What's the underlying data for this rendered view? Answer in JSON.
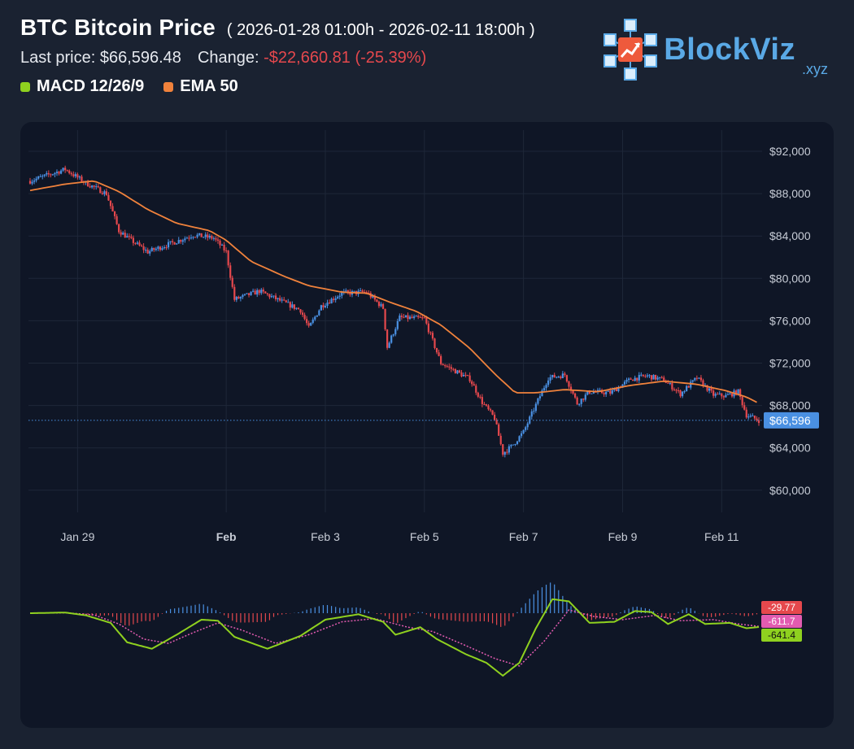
{
  "header": {
    "title": "BTC Bitcoin Price",
    "range": "( 2026-01-28 01:00h - 2026-02-11 18:00h )",
    "last_price_label": "Last price:",
    "last_price": "$66,596.48",
    "change_label": "Change:",
    "change_value": "-$22,660.81 (-25.39%)",
    "legend": [
      {
        "label": "MACD 12/26/9",
        "color": "#8fd11f"
      },
      {
        "label": "EMA 50",
        "color": "#f0823c"
      }
    ]
  },
  "brand": {
    "name": "BlockViz",
    "tld": ".xyz",
    "icon": "blockchain-cube-icon"
  },
  "colors": {
    "up": "#4a90e2",
    "down": "#e5484d",
    "ema": "#f0823c",
    "macd": "#8fd11f",
    "signal": "#e25bb0",
    "last_price_tag": "#4a90e2"
  },
  "chart_data": [
    {
      "type": "candlestick",
      "title": "BTC Bitcoin Price",
      "x_ticks": [
        "Jan 29",
        "Feb",
        "Feb 3",
        "Feb 5",
        "Feb 7",
        "Feb 9",
        "Feb 11"
      ],
      "x_tick_dates": [
        "2026-01-29",
        "2026-02-01",
        "2026-02-03",
        "2026-02-05",
        "2026-02-07",
        "2026-02-09",
        "2026-02-11"
      ],
      "y_ticks": [
        "$92,000",
        "$88,000",
        "$84,000",
        "$80,000",
        "$76,000",
        "$72,000",
        "$68,000",
        "$64,000",
        "$60,000"
      ],
      "ylim": [
        57000,
        94000
      ],
      "last_price": 66596,
      "last_price_label": "$66,596",
      "price_path": [
        [
          "2026-01-28 01:00",
          89200
        ],
        [
          "2026-01-28 18:00",
          90300
        ],
        [
          "2026-01-29 04:00",
          89000
        ],
        [
          "2026-01-29 14:00",
          88000
        ],
        [
          "2026-01-29 20:00",
          84500
        ],
        [
          "2026-01-30 02:00",
          83600
        ],
        [
          "2026-01-30 10:00",
          82500
        ],
        [
          "2026-01-31 00:00",
          83500
        ],
        [
          "2026-01-31 08:00",
          84100
        ],
        [
          "2026-01-31 18:00",
          83800
        ],
        [
          "2026-02-01 00:00",
          82500
        ],
        [
          "2026-02-01 04:00",
          78000
        ],
        [
          "2026-02-01 16:00",
          78800
        ],
        [
          "2026-02-02 02:00",
          77900
        ],
        [
          "2026-02-02 12:00",
          77000
        ],
        [
          "2026-02-02 16:00",
          75300
        ],
        [
          "2026-02-02 22:00",
          77400
        ],
        [
          "2026-02-03 08:00",
          78600
        ],
        [
          "2026-02-03 20:00",
          78700
        ],
        [
          "2026-02-04 04:00",
          77200
        ],
        [
          "2026-02-04 06:00",
          73500
        ],
        [
          "2026-02-04 12:00",
          76300
        ],
        [
          "2026-02-05 00:00",
          76200
        ],
        [
          "2026-02-05 08:00",
          72000
        ],
        [
          "2026-02-05 22:00",
          70500
        ],
        [
          "2026-02-06 04:00",
          68300
        ],
        [
          "2026-02-06 10:00",
          66800
        ],
        [
          "2026-02-06 14:00",
          63500
        ],
        [
          "2026-02-06 18:00",
          64100
        ],
        [
          "2026-02-07 00:00",
          65500
        ],
        [
          "2026-02-07 08:00",
          68900
        ],
        [
          "2026-02-07 12:00",
          70600
        ],
        [
          "2026-02-07 20:00",
          70900
        ],
        [
          "2026-02-08 02:00",
          68200
        ],
        [
          "2026-02-08 08:00",
          69300
        ],
        [
          "2026-02-08 18:00",
          69200
        ],
        [
          "2026-02-09 04:00",
          70500
        ],
        [
          "2026-02-09 12:00",
          70800
        ],
        [
          "2026-02-09 20:00",
          70400
        ],
        [
          "2026-02-10 04:00",
          69100
        ],
        [
          "2026-02-10 12:00",
          70600
        ],
        [
          "2026-02-10 20:00",
          69000
        ],
        [
          "2026-02-11 02:00",
          68900
        ],
        [
          "2026-02-11 08:00",
          69300
        ],
        [
          "2026-02-11 12:00",
          67100
        ],
        [
          "2026-02-11 18:00",
          66596
        ]
      ],
      "ema50_path": [
        [
          "2026-01-28 01:00",
          88300
        ],
        [
          "2026-01-28 18:00",
          88900
        ],
        [
          "2026-01-29 08:00",
          89200
        ],
        [
          "2026-01-29 20:00",
          88200
        ],
        [
          "2026-01-30 10:00",
          86500
        ],
        [
          "2026-01-31 00:00",
          85200
        ],
        [
          "2026-01-31 16:00",
          84500
        ],
        [
          "2026-02-01 00:00",
          83600
        ],
        [
          "2026-02-01 12:00",
          81600
        ],
        [
          "2026-02-02 04:00",
          80200
        ],
        [
          "2026-02-02 16:00",
          79300
        ],
        [
          "2026-02-03 08:00",
          78700
        ],
        [
          "2026-02-03 20:00",
          78600
        ],
        [
          "2026-02-04 08:00",
          77700
        ],
        [
          "2026-02-04 20:00",
          76900
        ],
        [
          "2026-02-05 08:00",
          75600
        ],
        [
          "2026-02-05 22:00",
          73400
        ],
        [
          "2026-02-06 10:00",
          71000
        ],
        [
          "2026-02-06 20:00",
          69200
        ],
        [
          "2026-02-07 06:00",
          69200
        ],
        [
          "2026-02-07 20:00",
          69500
        ],
        [
          "2026-02-08 12:00",
          69300
        ],
        [
          "2026-02-09 04:00",
          69900
        ],
        [
          "2026-02-09 20:00",
          70300
        ],
        [
          "2026-02-10 12:00",
          70000
        ],
        [
          "2026-02-11 02:00",
          69400
        ],
        [
          "2026-02-11 12:00",
          68800
        ],
        [
          "2026-02-11 18:00",
          68200
        ]
      ]
    },
    {
      "type": "macd",
      "title": "MACD 12/26/9",
      "series": [
        {
          "name": "MACD",
          "color": "#8fd11f",
          "last": -641.4,
          "last_label": "-641.4"
        },
        {
          "name": "Signal",
          "color": "#e25bb0",
          "last": -611.7,
          "last_label": "-611.7"
        },
        {
          "name": "Histogram",
          "last": -29.77,
          "last_label": "-29.77"
        }
      ],
      "macd_path": [
        [
          "2026-01-28 01:00",
          0
        ],
        [
          "2026-01-28 18:00",
          30
        ],
        [
          "2026-01-29 04:00",
          -100
        ],
        [
          "2026-01-29 16:00",
          -450
        ],
        [
          "2026-01-30 00:00",
          -1350
        ],
        [
          "2026-01-30 12:00",
          -1650
        ],
        [
          "2026-01-31 00:00",
          -1000
        ],
        [
          "2026-01-31 12:00",
          -300
        ],
        [
          "2026-01-31 20:00",
          -350
        ],
        [
          "2026-02-01 04:00",
          -1100
        ],
        [
          "2026-02-01 20:00",
          -1650
        ],
        [
          "2026-02-02 12:00",
          -1050
        ],
        [
          "2026-02-03 00:00",
          -300
        ],
        [
          "2026-02-03 16:00",
          -50
        ],
        [
          "2026-02-04 04:00",
          -400
        ],
        [
          "2026-02-04 10:00",
          -1000
        ],
        [
          "2026-02-04 22:00",
          -650
        ],
        [
          "2026-02-05 06:00",
          -1200
        ],
        [
          "2026-02-05 20:00",
          -1900
        ],
        [
          "2026-02-06 06:00",
          -2300
        ],
        [
          "2026-02-06 14:00",
          -2900
        ],
        [
          "2026-02-06 22:00",
          -2300
        ],
        [
          "2026-02-07 06:00",
          -700
        ],
        [
          "2026-02-07 14:00",
          650
        ],
        [
          "2026-02-07 22:00",
          550
        ],
        [
          "2026-02-08 08:00",
          -450
        ],
        [
          "2026-02-08 20:00",
          -400
        ],
        [
          "2026-02-09 06:00",
          100
        ],
        [
          "2026-02-09 14:00",
          50
        ],
        [
          "2026-02-09 22:00",
          -500
        ],
        [
          "2026-02-10 08:00",
          -50
        ],
        [
          "2026-02-10 16:00",
          -500
        ],
        [
          "2026-02-11 04:00",
          -450
        ],
        [
          "2026-02-11 12:00",
          -700
        ],
        [
          "2026-02-11 18:00",
          -641.4
        ]
      ],
      "signal_path": [
        [
          "2026-01-28 01:00",
          0
        ],
        [
          "2026-01-28 18:00",
          20
        ],
        [
          "2026-01-29 08:00",
          -80
        ],
        [
          "2026-01-29 20:00",
          -500
        ],
        [
          "2026-01-30 08:00",
          -1200
        ],
        [
          "2026-01-30 20:00",
          -1400
        ],
        [
          "2026-01-31 08:00",
          -900
        ],
        [
          "2026-01-31 20:00",
          -450
        ],
        [
          "2026-02-01 08:00",
          -800
        ],
        [
          "2026-02-02 00:00",
          -1400
        ],
        [
          "2026-02-02 16:00",
          -1000
        ],
        [
          "2026-02-03 08:00",
          -400
        ],
        [
          "2026-02-04 00:00",
          -250
        ],
        [
          "2026-02-04 16:00",
          -650
        ],
        [
          "2026-02-05 04:00",
          -850
        ],
        [
          "2026-02-05 20:00",
          -1500
        ],
        [
          "2026-02-06 10:00",
          -2100
        ],
        [
          "2026-02-06 22:00",
          -2450
        ],
        [
          "2026-02-07 10:00",
          -1300
        ],
        [
          "2026-02-07 22:00",
          150
        ],
        [
          "2026-02-08 10:00",
          -150
        ],
        [
          "2026-02-09 00:00",
          -300
        ],
        [
          "2026-02-09 16:00",
          -100
        ],
        [
          "2026-02-10 04:00",
          -350
        ],
        [
          "2026-02-10 20:00",
          -300
        ],
        [
          "2026-02-11 08:00",
          -500
        ],
        [
          "2026-02-11 18:00",
          -611.7
        ]
      ]
    }
  ]
}
